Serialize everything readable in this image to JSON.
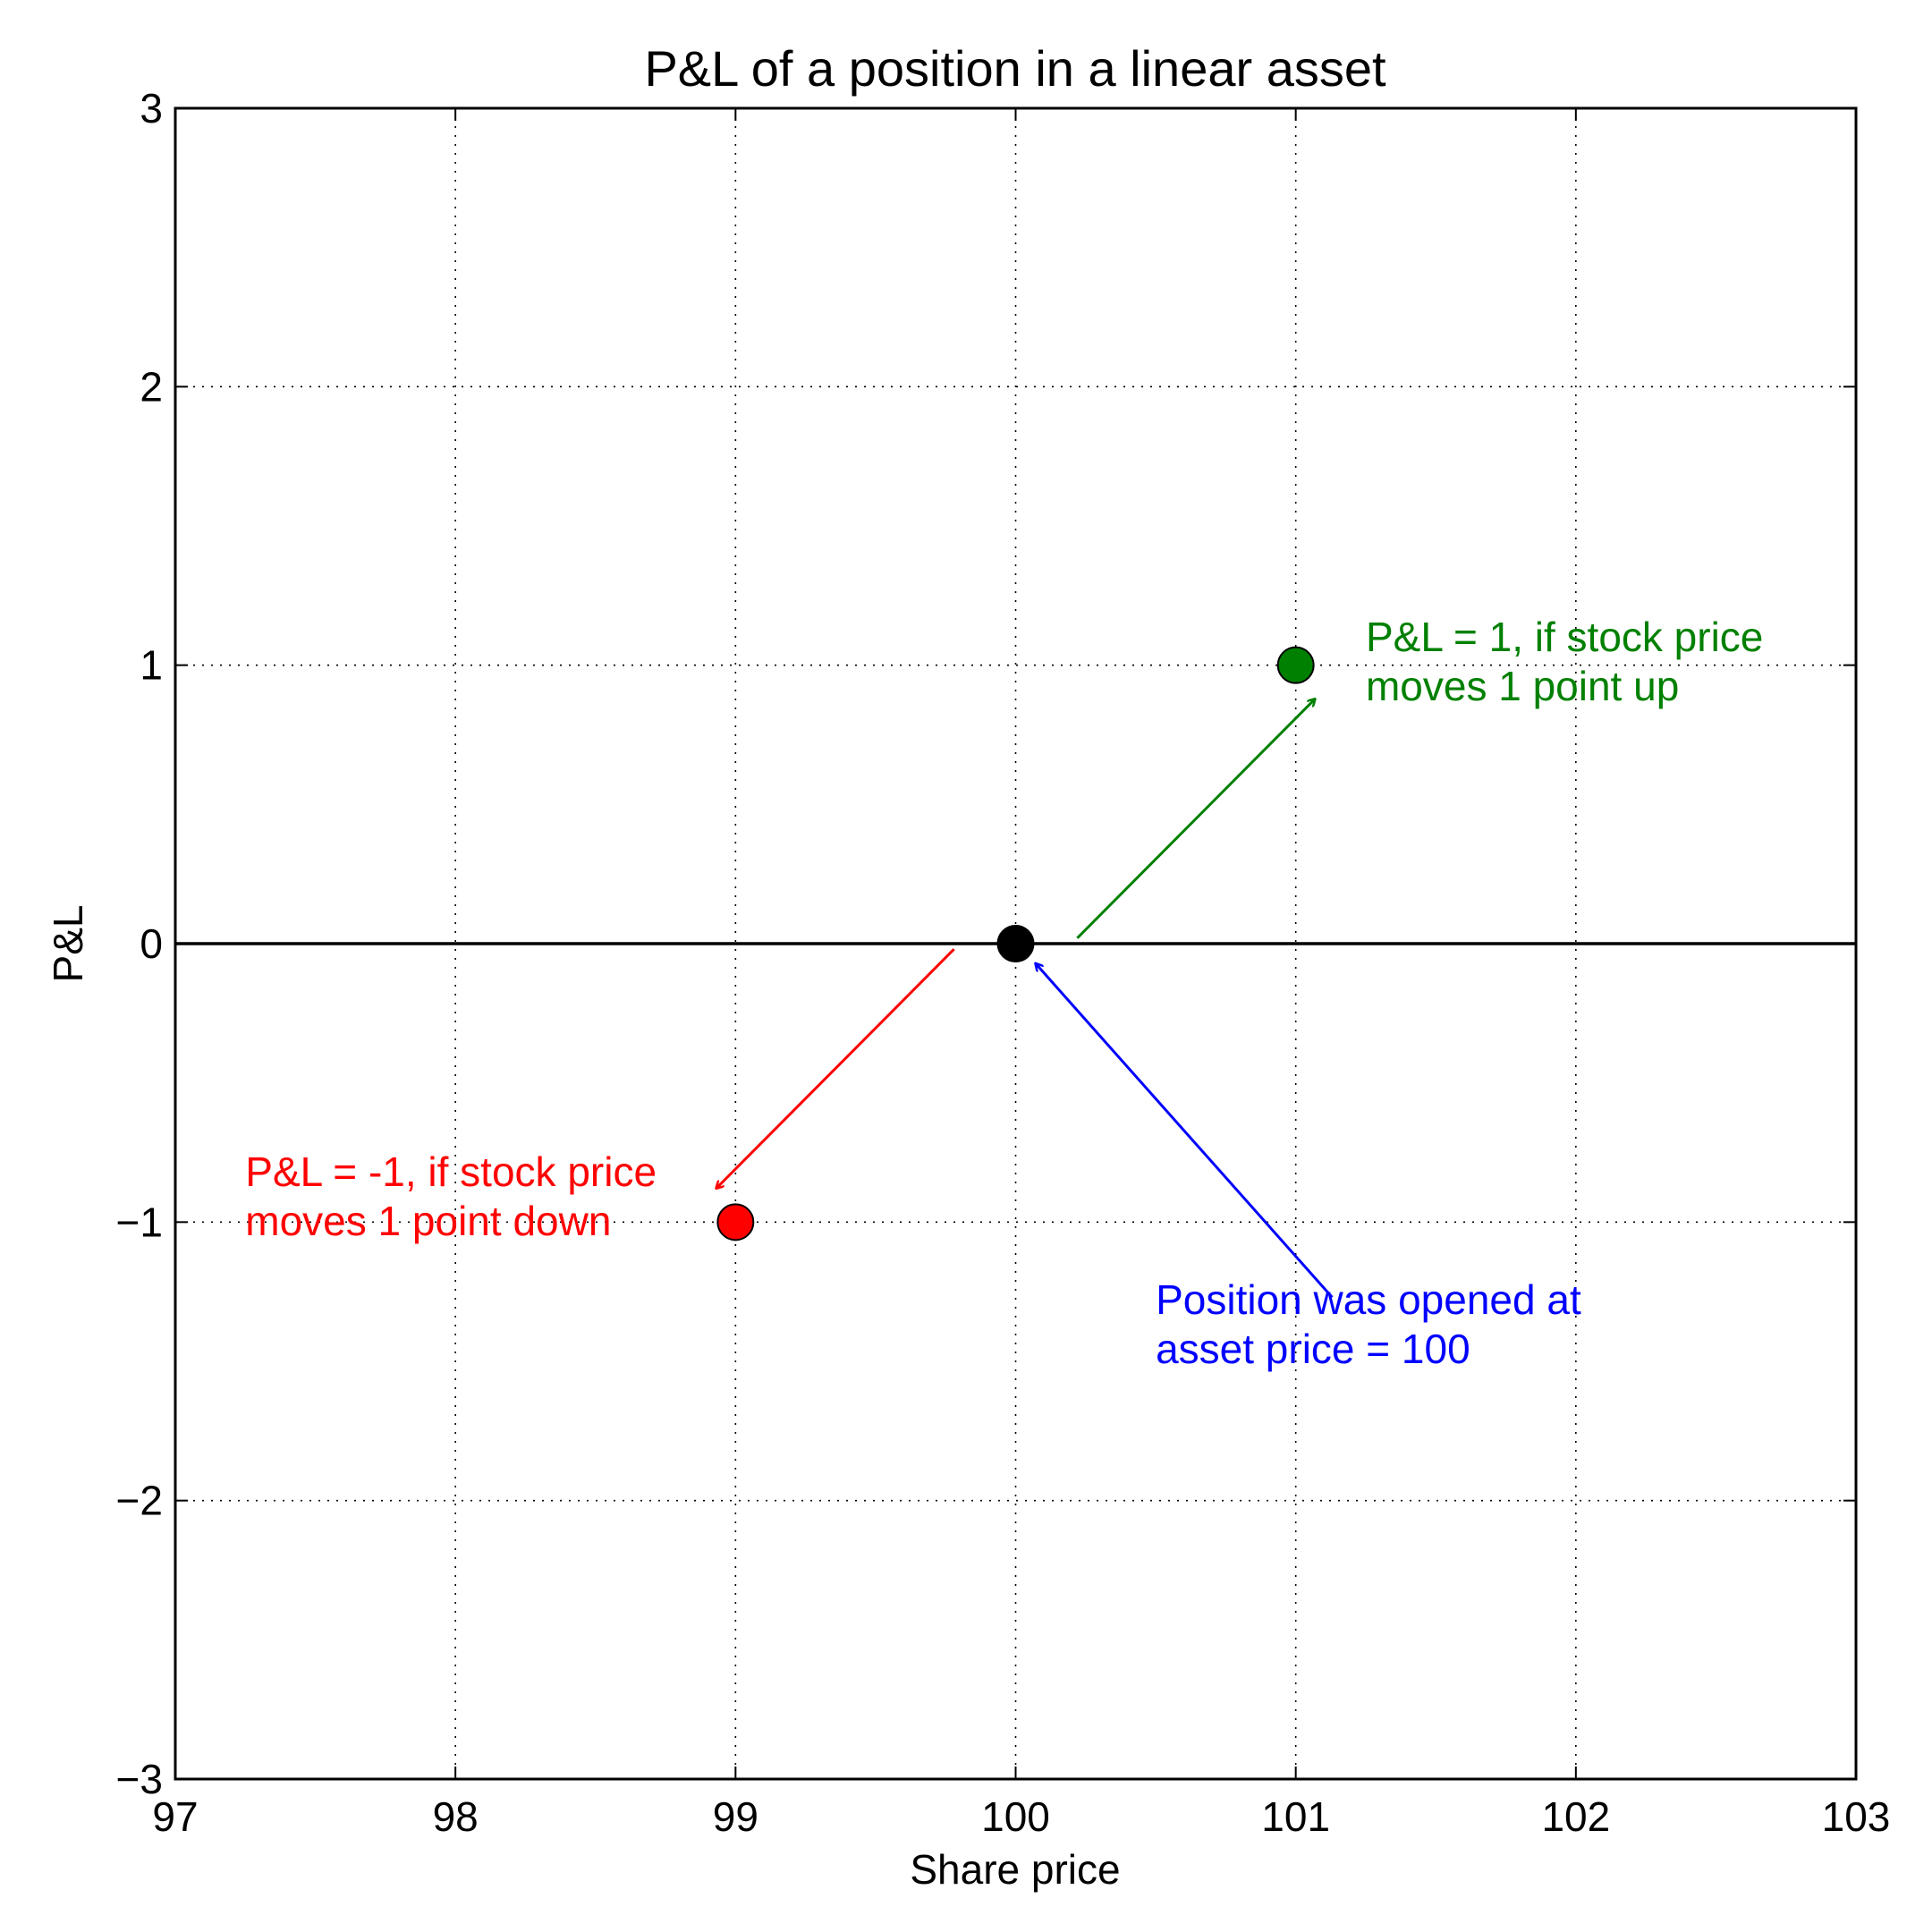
{
  "chart_data": {
    "type": "scatter",
    "title": "P&L of a position in a linear asset",
    "xlabel": "Share price",
    "ylabel": "P&L",
    "xlim": [
      97,
      103
    ],
    "ylim": [
      -3,
      3
    ],
    "xticks": [
      97,
      98,
      99,
      100,
      101,
      102,
      103
    ],
    "yticks": [
      -3,
      -2,
      -1,
      0,
      1,
      2,
      3
    ],
    "ytick_labels": [
      "−3",
      "−2",
      "−1",
      "0",
      "1",
      "2",
      "3"
    ],
    "grid": true,
    "reference_line": {
      "y": 0,
      "color": "#000000"
    },
    "points": [
      {
        "x": 100,
        "y": 0,
        "color": "#000000"
      },
      {
        "x": 101,
        "y": 1,
        "color": "#008000"
      },
      {
        "x": 99,
        "y": -1,
        "color": "#ff0000"
      }
    ],
    "annotations": [
      {
        "lines": [
          "P&L = 1, if stock price",
          "moves 1 point up"
        ],
        "color": "#008000",
        "text_at": [
          101.25,
          1.05
        ],
        "arrow_from": [
          100.22,
          0.02
        ],
        "arrow_to": [
          101.07,
          0.88
        ]
      },
      {
        "lines": [
          "P&L = -1, if stock price",
          "moves 1 point down"
        ],
        "color": "#ff0000",
        "text_at": [
          97.25,
          -0.87
        ],
        "arrow_from": [
          99.78,
          -0.02
        ],
        "arrow_to": [
          98.93,
          -0.88
        ]
      },
      {
        "lines": [
          "Position was opened at",
          "asset price = 100"
        ],
        "color": "#0000ff",
        "text_at": [
          100.5,
          -1.33
        ],
        "arrow_from": [
          101.13,
          -1.27
        ],
        "arrow_to": [
          100.07,
          -0.07
        ]
      }
    ]
  }
}
